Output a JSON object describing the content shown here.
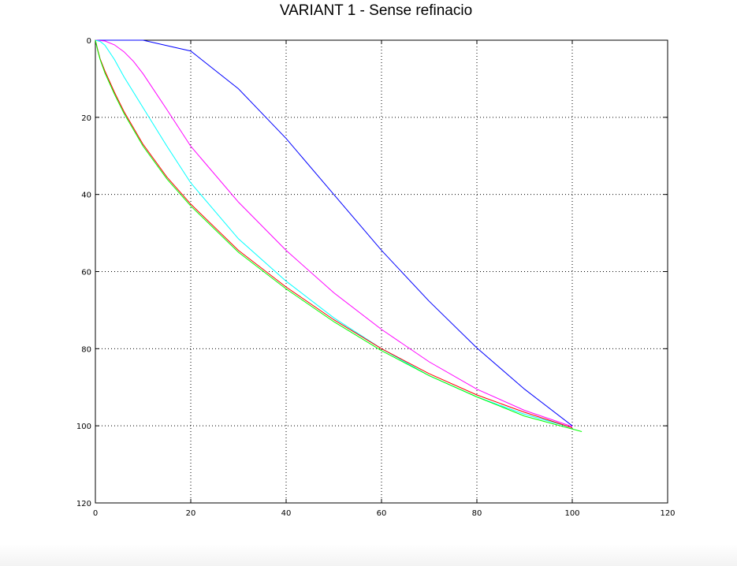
{
  "chart_data": {
    "type": "line",
    "title": "VARIANT 1 - Sense refinacio",
    "xlabel": "",
    "ylabel": "",
    "xlim": [
      0,
      120
    ],
    "ylim": [
      0,
      120
    ],
    "y_inverted": true,
    "grid": true,
    "x_ticks": [
      0,
      20,
      40,
      60,
      80,
      100,
      120
    ],
    "y_ticks": [
      0,
      20,
      40,
      60,
      80,
      100,
      120
    ],
    "series": [
      {
        "color": "#0000ff",
        "points": [
          [
            0,
            0
          ],
          [
            10,
            0
          ],
          [
            20,
            2.8
          ],
          [
            30,
            12.6
          ],
          [
            40,
            25.5
          ],
          [
            50,
            40
          ],
          [
            60,
            54.5
          ],
          [
            70,
            67.7
          ],
          [
            80,
            79.8
          ],
          [
            90,
            90.5
          ],
          [
            100,
            100
          ]
        ]
      },
      {
        "color": "#ff00ff",
        "points": [
          [
            0,
            0
          ],
          [
            2,
            0.2
          ],
          [
            4,
            1.2
          ],
          [
            6,
            3
          ],
          [
            8,
            5.5
          ],
          [
            10,
            8.7
          ],
          [
            15,
            18
          ],
          [
            20,
            27.5
          ],
          [
            30,
            42
          ],
          [
            40,
            54.5
          ],
          [
            50,
            65.5
          ],
          [
            60,
            75
          ],
          [
            70,
            83.4
          ],
          [
            80,
            90.5
          ],
          [
            90,
            96
          ],
          [
            100,
            100.2
          ]
        ]
      },
      {
        "color": "#00ffff",
        "points": [
          [
            0,
            0
          ],
          [
            1,
            0.3
          ],
          [
            2,
            1.3
          ],
          [
            4,
            5
          ],
          [
            6,
            9.5
          ],
          [
            10,
            17.5
          ],
          [
            15,
            27.5
          ],
          [
            20,
            37
          ],
          [
            30,
            51.5
          ],
          [
            40,
            62.5
          ],
          [
            50,
            72
          ],
          [
            60,
            80
          ],
          [
            70,
            87
          ],
          [
            80,
            92.5
          ],
          [
            90,
            97
          ],
          [
            100,
            100.5
          ]
        ]
      },
      {
        "color": "#ff0000",
        "points": [
          [
            0,
            0
          ],
          [
            0.5,
            2.5
          ],
          [
            1,
            4.8
          ],
          [
            2,
            8
          ],
          [
            4,
            13.5
          ],
          [
            6,
            18.5
          ],
          [
            10,
            27
          ],
          [
            15,
            35.5
          ],
          [
            20,
            42.5
          ],
          [
            30,
            54.5
          ],
          [
            40,
            64
          ],
          [
            50,
            72.5
          ],
          [
            60,
            80
          ],
          [
            70,
            86.5
          ],
          [
            80,
            92
          ],
          [
            90,
            96.5
          ],
          [
            100,
            100.5
          ]
        ]
      },
      {
        "color": "#00ff00",
        "points": [
          [
            0,
            0
          ],
          [
            0.5,
            2.7
          ],
          [
            1,
            5
          ],
          [
            2,
            8.5
          ],
          [
            4,
            14
          ],
          [
            6,
            19
          ],
          [
            10,
            27.5
          ],
          [
            15,
            36
          ],
          [
            20,
            43
          ],
          [
            30,
            55
          ],
          [
            40,
            64.5
          ],
          [
            50,
            73
          ],
          [
            60,
            80.5
          ],
          [
            70,
            87
          ],
          [
            80,
            92.5
          ],
          [
            90,
            97.5
          ],
          [
            102,
            101.5
          ]
        ]
      }
    ]
  }
}
